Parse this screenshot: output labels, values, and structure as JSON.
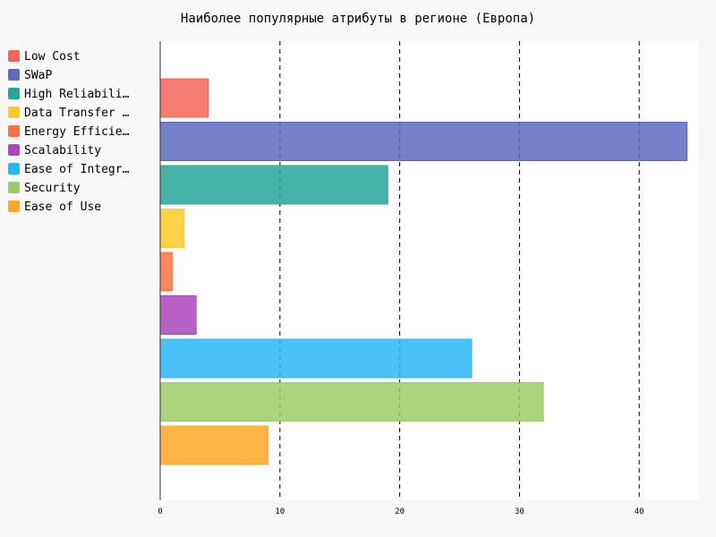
{
  "chart_data": {
    "type": "bar",
    "orientation": "horizontal",
    "title": "Наиболее популярные атрибуты в регионе (Европа)",
    "xlabel": "",
    "ylabel": "",
    "categories": [
      "Low Cost",
      "SWaP",
      "High Reliabili…",
      "Data Transfer …",
      "Energy Efficie…",
      "Scalability",
      "Ease of Integr…",
      "Security",
      "Ease of Use"
    ],
    "values": [
      4,
      44,
      19,
      2,
      1,
      3,
      26,
      32,
      9
    ],
    "colors": [
      "#f4645b",
      "#5c6bc0",
      "#26a69a",
      "#ffca28",
      "#ff7043",
      "#ab47bc",
      "#29b6f6",
      "#9ccc65",
      "#ffa726"
    ],
    "xlim": [
      0,
      45
    ],
    "xticks": [
      0,
      10,
      20,
      30,
      40
    ],
    "grid": "vertical dashed",
    "legend_position": "top-left"
  }
}
